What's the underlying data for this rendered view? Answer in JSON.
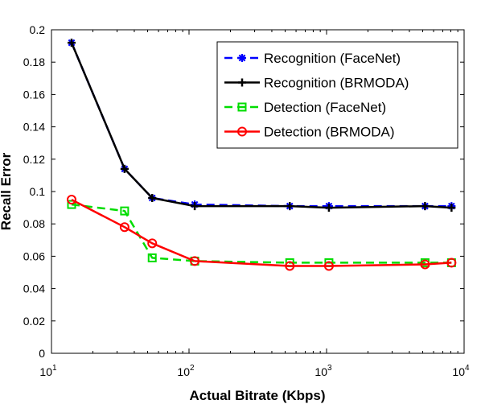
{
  "chart_data": {
    "type": "line",
    "title": "",
    "xlabel": "Actual Bitrate (Kbps)",
    "ylabel": "Recall Error",
    "xscale": "log",
    "xlim": [
      10,
      10000
    ],
    "ylim": [
      0,
      0.2
    ],
    "grid": false,
    "legend_position": "top-right",
    "x_ticks": [
      {
        "value": 10,
        "base": "10",
        "exp": "1"
      },
      {
        "value": 100,
        "base": "10",
        "exp": "2"
      },
      {
        "value": 1000,
        "base": "10",
        "exp": "3"
      },
      {
        "value": 10000,
        "base": "10",
        "exp": "4"
      }
    ],
    "y_ticks": [
      {
        "value": 0,
        "label": "0"
      },
      {
        "value": 0.02,
        "label": "0.02"
      },
      {
        "value": 0.04,
        "label": "0.04"
      },
      {
        "value": 0.06,
        "label": "0.06"
      },
      {
        "value": 0.08,
        "label": "0.08"
      },
      {
        "value": 0.1,
        "label": "0.1"
      },
      {
        "value": 0.12,
        "label": "0.12"
      },
      {
        "value": 0.14,
        "label": "0.14"
      },
      {
        "value": 0.16,
        "label": "0.16"
      },
      {
        "value": 0.18,
        "label": "0.18"
      },
      {
        "value": 0.2,
        "label": "0.2"
      }
    ],
    "series": [
      {
        "name": "Recognition (FaceNet)",
        "color": "#0000ff",
        "line_style": "dashed",
        "marker": "asterisk",
        "x": [
          14,
          34,
          54,
          110,
          540,
          1040,
          5200,
          8100
        ],
        "y": [
          0.192,
          0.114,
          0.096,
          0.092,
          0.091,
          0.091,
          0.091,
          0.091
        ]
      },
      {
        "name": "Recognition (BRMODA)",
        "color": "#000000",
        "line_style": "solid",
        "marker": "plus",
        "x": [
          14,
          34,
          54,
          110,
          540,
          1040,
          5200,
          8100
        ],
        "y": [
          0.192,
          0.114,
          0.096,
          0.091,
          0.091,
          0.09,
          0.091,
          0.09
        ]
      },
      {
        "name": "Detection (FaceNet)",
        "color": "#00dd00",
        "line_style": "dashed",
        "marker": "square",
        "x": [
          14,
          34,
          54,
          110,
          540,
          1040,
          5200,
          8100
        ],
        "y": [
          0.092,
          0.088,
          0.059,
          0.057,
          0.056,
          0.056,
          0.056,
          0.056
        ]
      },
      {
        "name": "Detection (BRMODA)",
        "color": "#ff0000",
        "line_style": "solid",
        "marker": "circle",
        "x": [
          14,
          34,
          54,
          110,
          540,
          1040,
          5200,
          8100
        ],
        "y": [
          0.095,
          0.078,
          0.068,
          0.057,
          0.054,
          0.054,
          0.055,
          0.056
        ]
      }
    ]
  }
}
